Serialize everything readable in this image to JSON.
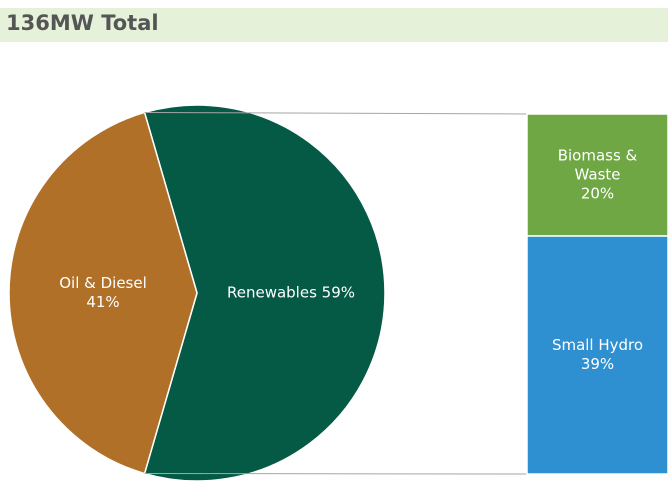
{
  "chart_data": {
    "type": "bar-of-pie",
    "title": "136MW Total",
    "categories": [
      "Oil & Diesel",
      "Renewables"
    ],
    "values": [
      41,
      59
    ],
    "value_labels": [
      "41%",
      "59%"
    ],
    "colors": [
      "#b07028",
      "#045a45"
    ],
    "secondary": {
      "categories": [
        "Biomass & Waste",
        "Small Hydro"
      ],
      "values": [
        20,
        39
      ],
      "value_labels": [
        "20%",
        "39%"
      ],
      "colors": [
        "#6fa744",
        "#2e8fd1"
      ]
    }
  }
}
